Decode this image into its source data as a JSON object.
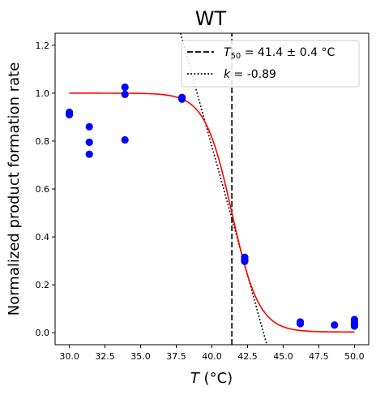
{
  "chart_data": {
    "type": "scatter",
    "title": "WT",
    "xlabel": {
      "symbol": "T",
      "unit": " (°C)"
    },
    "ylabel": "Normalized product formation rate",
    "xlim": [
      29.0,
      51.0
    ],
    "ylim": [
      -0.05,
      1.25
    ],
    "xticks": [
      30.0,
      32.5,
      35.0,
      37.5,
      40.0,
      42.5,
      45.0,
      47.5,
      50.0
    ],
    "xtick_labels": [
      "30.0",
      "32.5",
      "35.0",
      "37.5",
      "40.0",
      "42.5",
      "45.0",
      "47.5",
      "50.0"
    ],
    "yticks": [
      0.0,
      0.2,
      0.4,
      0.6,
      0.8,
      1.0,
      1.2
    ],
    "ytick_labels": [
      "0.0",
      "0.2",
      "0.4",
      "0.6",
      "0.8",
      "1.0",
      "1.2"
    ],
    "grid": false,
    "legend_position": "top-right",
    "colors": {
      "points": "#0000ff",
      "fit": "#ff0000",
      "reference_lines": "#000000"
    },
    "points": [
      {
        "x": 30.0,
        "y": 0.92
      },
      {
        "x": 30.0,
        "y": 0.91
      },
      {
        "x": 31.4,
        "y": 0.86
      },
      {
        "x": 31.4,
        "y": 0.795
      },
      {
        "x": 31.4,
        "y": 0.745
      },
      {
        "x": 33.9,
        "y": 1.025
      },
      {
        "x": 33.9,
        "y": 0.995
      },
      {
        "x": 33.9,
        "y": 0.805
      },
      {
        "x": 37.9,
        "y": 0.982
      },
      {
        "x": 37.9,
        "y": 0.975
      },
      {
        "x": 42.3,
        "y": 0.315
      },
      {
        "x": 42.3,
        "y": 0.305
      },
      {
        "x": 42.3,
        "y": 0.298
      },
      {
        "x": 46.2,
        "y": 0.045
      },
      {
        "x": 46.2,
        "y": 0.038
      },
      {
        "x": 48.6,
        "y": 0.032
      },
      {
        "x": 50.0,
        "y": 0.055
      },
      {
        "x": 50.0,
        "y": 0.045
      },
      {
        "x": 50.0,
        "y": 0.035
      },
      {
        "x": 50.0,
        "y": 0.028
      }
    ],
    "fit_curve": {
      "model": "sigmoid",
      "top": 1.0,
      "bottom": 0.003,
      "midpoint": 41.4,
      "scale": 0.95,
      "x_range": [
        30.0,
        50.0
      ]
    },
    "reference_lines": [
      {
        "kind": "vertical",
        "style": "dashed",
        "x": 41.4,
        "y_range": [
          -0.05,
          1.25
        ]
      },
      {
        "kind": "line",
        "style": "dotted",
        "points": [
          [
            37.8,
            1.25
          ],
          [
            43.85,
            -0.05
          ]
        ]
      }
    ],
    "legend": [
      {
        "style": "dashed",
        "symbol": "T",
        "subscript": "50",
        "text": " = 41.4 ± 0.4 °C"
      },
      {
        "style": "dotted",
        "symbol": "k",
        "subscript": "",
        "text": " = -0.89"
      }
    ]
  }
}
